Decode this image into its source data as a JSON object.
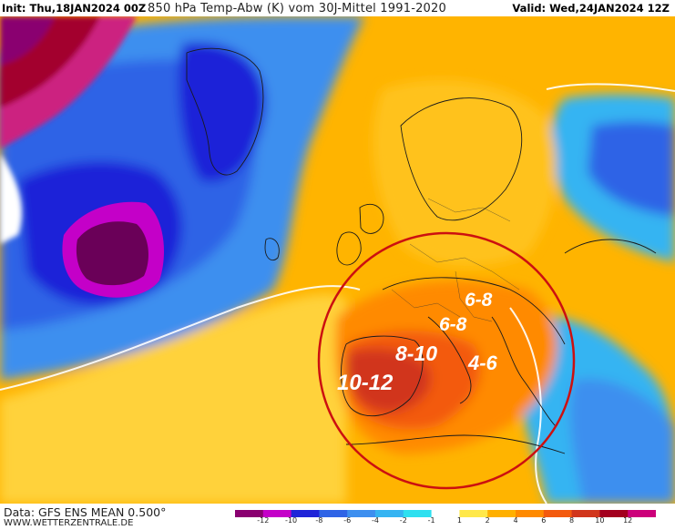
{
  "header": {
    "init": "Init: Thu,18JAN2024 00Z",
    "title": "850 hPa Temp-Abw (K) vom 30J-Mittel 1991-2020",
    "valid": "Valid: Wed,24JAN2024 12Z"
  },
  "footer": {
    "data_source": "Data: GFS ENS MEAN 0.500°",
    "website": "WWW.WETTERZENTRALE.DE"
  },
  "legend": {
    "ticks": [
      "-12",
      "-10",
      "-8",
      "-6",
      "-4",
      "-2",
      "-1",
      "1",
      "2",
      "4",
      "6",
      "8",
      "10",
      "12"
    ],
    "colors": [
      "#8a0070",
      "#c400c8",
      "#1f24d8",
      "#2f64e6",
      "#3d8fef",
      "#35b4f2",
      "#2ee0f0",
      "#ffffff",
      "#ffe84a",
      "#ffb000",
      "#ff8a00",
      "#f35a0e",
      "#d1361c",
      "#a3001e",
      "#cc007a"
    ]
  },
  "annotations": {
    "a1": "6-8",
    "a2": "6-8",
    "a3": "8-10",
    "a4": "4-6",
    "a5": "10-12"
  },
  "colors": {
    "highlight_circle": "#cc1010",
    "annotation_text": "#ffffff"
  }
}
